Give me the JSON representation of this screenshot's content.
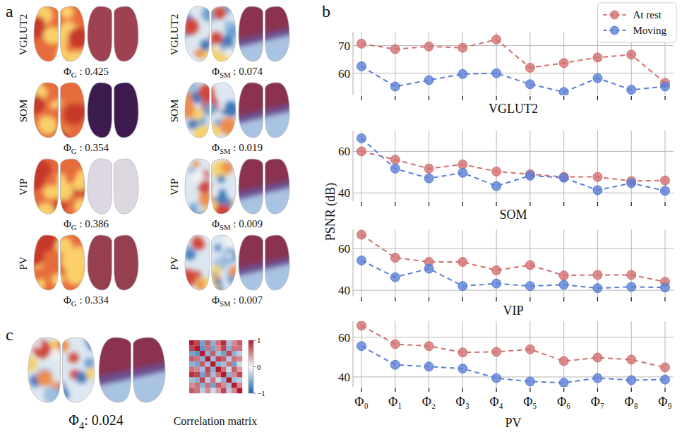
{
  "panel_labels": [
    "a",
    "b",
    "c"
  ],
  "shared_ylabel": "PSNR (dB)",
  "panel_a": {
    "rows": [
      {
        "name": "VGLUT2",
        "global": {
          "symbol": "Φ",
          "sub": "G",
          "text": " : 0.425",
          "color": "#9e4252"
        },
        "sensorimotor": {
          "symbol": "Φ",
          "sub": "SM",
          "text": " : 0.074"
        }
      },
      {
        "name": "SOM",
        "global": {
          "symbol": "Φ",
          "sub": "G",
          "text": " : 0.354",
          "color": "#3e1b4f"
        },
        "sensorimotor": {
          "symbol": "Φ",
          "sub": "SM",
          "text": " : 0.019"
        }
      },
      {
        "name": "VIP",
        "global": {
          "symbol": "Φ",
          "sub": "G",
          "text": " : 0.386",
          "color": "#ddd7e2"
        },
        "sensorimotor": {
          "symbol": "Φ",
          "sub": "SM",
          "text": " : 0.009"
        }
      },
      {
        "name": "PV",
        "global": {
          "symbol": "Φ",
          "sub": "G",
          "text": " : 0.334",
          "color": "#96404f"
        },
        "sensorimotor": {
          "symbol": "Φ",
          "sub": "SM",
          "text": " : 0.007"
        }
      }
    ]
  },
  "panel_c": {
    "mode": {
      "symbol": "Φ",
      "sub": "4",
      "text": ": 0.024"
    },
    "matrix": {
      "title": "Correlation matrix",
      "cells": [
        [
          1,
          0.8,
          -0.6,
          0.7,
          -0.5,
          0.6,
          0.9,
          -0.4,
          0.5,
          0.7
        ],
        [
          0.8,
          1,
          -0.7,
          0.6,
          -0.6,
          0.5,
          0.8,
          -0.5,
          0.6,
          0.6
        ],
        [
          -0.6,
          -0.7,
          1,
          -0.5,
          0.7,
          -0.4,
          -0.6,
          0.8,
          -0.5,
          -0.3
        ],
        [
          0.7,
          0.6,
          -0.5,
          1,
          -0.4,
          0.8,
          0.7,
          -0.3,
          0.6,
          0.5
        ],
        [
          -0.5,
          -0.6,
          0.7,
          -0.4,
          1,
          -0.5,
          -0.4,
          0.6,
          -0.6,
          -0.2
        ],
        [
          0.6,
          0.5,
          -0.4,
          0.8,
          -0.5,
          1,
          0.6,
          -0.2,
          0.7,
          0.4
        ],
        [
          0.9,
          0.8,
          -0.6,
          0.7,
          -0.4,
          0.6,
          1,
          -0.5,
          0.5,
          0.8
        ],
        [
          -0.4,
          -0.5,
          0.8,
          -0.3,
          0.6,
          -0.2,
          -0.5,
          1,
          -0.4,
          -0.3
        ],
        [
          0.5,
          0.6,
          -0.5,
          0.6,
          -0.6,
          0.7,
          0.5,
          -0.4,
          1,
          0.5
        ],
        [
          0.7,
          0.6,
          -0.3,
          0.5,
          -0.2,
          0.4,
          0.8,
          -0.3,
          0.5,
          1
        ]
      ],
      "color_range": [
        -1,
        1
      ],
      "color_ticks": [
        1,
        0,
        {
          "value": -1,
          "label": "−1"
        }
      ]
    }
  },
  "chart_data": [
    {
      "type": "line",
      "xlabel": "VGLUT2",
      "categories": [
        "Φ₀",
        "Φ₁",
        "Φ₂",
        "Φ₃",
        "Φ₄",
        "Φ₅",
        "Φ₆",
        "Φ₇",
        "Φ₈",
        "Φ₉"
      ],
      "series": [
        {
          "name": "At rest",
          "color": "#d1706f",
          "marker": "circle",
          "line_style": "dashed",
          "values": [
            70.7,
            68.7,
            69.7,
            69.2,
            72.2,
            62.0,
            63.7,
            65.7,
            66.7,
            56.5
          ]
        },
        {
          "name": "Moving",
          "color": "#5b7fd6",
          "marker": "circle",
          "line_style": "dashed",
          "values": [
            62.5,
            55.2,
            57.5,
            59.7,
            60.0,
            56.0,
            53.2,
            58.2,
            54.0,
            55.2
          ]
        }
      ],
      "ylim": [
        52,
        75
      ],
      "yticks": [
        60,
        70
      ],
      "grid": true,
      "tick_labels": "y",
      "legend": "upper right"
    },
    {
      "type": "line",
      "xlabel": "SOM",
      "categories": [
        "Φ₀",
        "Φ₁",
        "Φ₂",
        "Φ₃",
        "Φ₄",
        "Φ₅",
        "Φ₆",
        "Φ₇",
        "Φ₈",
        "Φ₉"
      ],
      "series": [
        {
          "name": "At rest",
          "color": "#d1706f",
          "marker": "circle",
          "line_style": "dashed",
          "values": [
            60.0,
            56.0,
            51.7,
            53.7,
            50.3,
            49.0,
            47.7,
            47.7,
            45.7,
            46.0
          ]
        },
        {
          "name": "Moving",
          "color": "#5b7fd6",
          "marker": "circle",
          "line_style": "dashed",
          "values": [
            66.3,
            51.7,
            47.0,
            49.7,
            43.3,
            48.3,
            47.3,
            41.3,
            44.7,
            41.0
          ]
        }
      ],
      "ylim": [
        36,
        70
      ],
      "yticks": [
        40,
        60
      ],
      "grid": true,
      "tick_labels": "y"
    },
    {
      "type": "line",
      "xlabel": "VIP",
      "categories": [
        "Φ₀",
        "Φ₁",
        "Φ₂",
        "Φ₃",
        "Φ₄",
        "Φ₅",
        "Φ₆",
        "Φ₇",
        "Φ₈",
        "Φ₉"
      ],
      "series": [
        {
          "name": "At rest",
          "color": "#d1706f",
          "marker": "circle",
          "line_style": "dashed",
          "values": [
            66.5,
            55.5,
            53.5,
            53.5,
            49.5,
            52.0,
            47.0,
            47.3,
            47.3,
            44.0
          ]
        },
        {
          "name": "Moving",
          "color": "#5b7fd6",
          "marker": "circle",
          "line_style": "dashed",
          "values": [
            54.2,
            46.2,
            50.3,
            42.0,
            43.2,
            42.0,
            42.6,
            41.0,
            41.6,
            41.3
          ]
        }
      ],
      "ylim": [
        37,
        69
      ],
      "yticks": [
        40,
        60
      ],
      "grid": true,
      "tick_labels": "y"
    },
    {
      "type": "line",
      "xlabel": "PV",
      "categories": [
        "Φ₀",
        "Φ₁",
        "Φ₂",
        "Φ₃",
        "Φ₄",
        "Φ₅",
        "Φ₆",
        "Φ₇",
        "Φ₈",
        "Φ₉"
      ],
      "series": [
        {
          "name": "At rest",
          "color": "#d1706f",
          "marker": "circle",
          "line_style": "dashed",
          "values": [
            65.8,
            56.5,
            55.5,
            52.3,
            52.6,
            53.9,
            48.0,
            49.7,
            48.7,
            44.8
          ]
        },
        {
          "name": "Moving",
          "color": "#5b7fd6",
          "marker": "circle",
          "line_style": "dashed",
          "values": [
            55.5,
            46.1,
            45.2,
            44.2,
            39.4,
            37.7,
            37.1,
            39.4,
            38.4,
            38.7
          ]
        }
      ],
      "ylim": [
        35,
        68
      ],
      "yticks": [
        40,
        60
      ],
      "grid": true
    }
  ]
}
